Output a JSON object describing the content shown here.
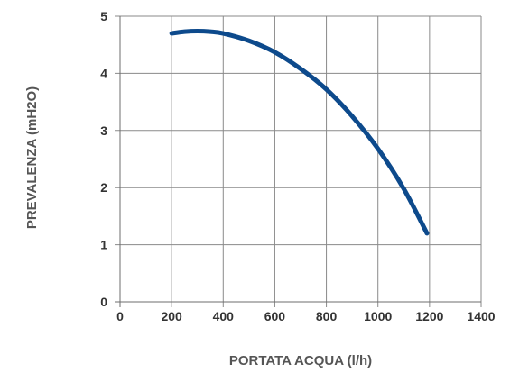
{
  "chart_data": {
    "type": "line",
    "title": "",
    "xlabel": "PORTATA ACQUA (l/h)",
    "ylabel": "PREVALENZA (mH2O)",
    "xlim": [
      0,
      1400
    ],
    "ylim": [
      0,
      5
    ],
    "xticks": [
      "0",
      "200",
      "400",
      "600",
      "800",
      "1000",
      "1200",
      "1400"
    ],
    "yticks": [
      "0",
      "1",
      "2",
      "3",
      "4",
      "5"
    ],
    "grid": true,
    "series": [
      {
        "color": "#0d4a8c",
        "x": [
          200,
          250,
          300,
          350,
          400,
          500,
          600,
          700,
          800,
          900,
          1000,
          1100,
          1190
        ],
        "y": [
          4.7,
          4.73,
          4.74,
          4.73,
          4.7,
          4.57,
          4.37,
          4.08,
          3.72,
          3.25,
          2.68,
          1.98,
          1.2
        ]
      }
    ]
  }
}
